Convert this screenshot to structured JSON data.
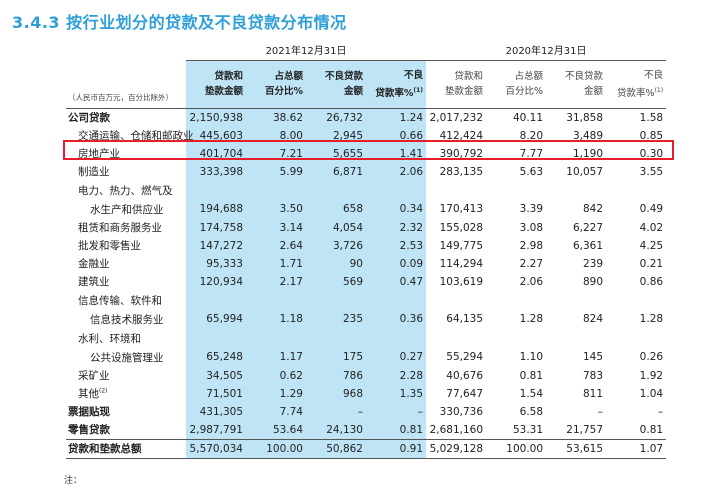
{
  "title": "3.4.3 按行业划分的贷款及不良贷款分布情况",
  "year_2021": "2021年12月31日",
  "year_2020": "2020年12月31日",
  "unit_note": "（人民币百万元，百分比除外）",
  "headers": {
    "loan_amount": [
      "贷款和",
      "垫款金额"
    ],
    "pct_total": [
      "占总额",
      "百分比%"
    ],
    "npl_amount": [
      "不良贷款",
      "金额"
    ],
    "npl_ratio": [
      "不良",
      "贷款率%"
    ],
    "npl_ratio_note": "(1)"
  },
  "rows": [
    {
      "label": "公司贷款",
      "style": "bold",
      "v": [
        "2,150,938",
        "38.62",
        "26,732",
        "1.24",
        "2,017,232",
        "40.11",
        "31,858",
        "1.58"
      ]
    },
    {
      "label": "交通运输、仓储和邮政业",
      "style": "sub",
      "v": [
        "445,603",
        "8.00",
        "2,945",
        "0.66",
        "412,424",
        "8.20",
        "3,489",
        "0.85"
      ]
    },
    {
      "label": "房地产业",
      "style": "sub",
      "v": [
        "401,704",
        "7.21",
        "5,655",
        "1.41",
        "390,792",
        "7.77",
        "1,190",
        "0.30"
      ]
    },
    {
      "label": "制造业",
      "style": "sub",
      "v": [
        "333,398",
        "5.99",
        "6,871",
        "2.06",
        "283,135",
        "5.63",
        "10,057",
        "3.55"
      ]
    },
    {
      "label": "电力、热力、燃气及",
      "label2": "水生产和供应业",
      "style": "sub",
      "v": [
        "194,688",
        "3.50",
        "658",
        "0.34",
        "170,413",
        "3.39",
        "842",
        "0.49"
      ]
    },
    {
      "label": "租赁和商务服务业",
      "style": "sub",
      "v": [
        "174,758",
        "3.14",
        "4,054",
        "2.32",
        "155,028",
        "3.08",
        "6,227",
        "4.02"
      ]
    },
    {
      "label": "批发和零售业",
      "style": "sub",
      "v": [
        "147,272",
        "2.64",
        "3,726",
        "2.53",
        "149,775",
        "2.98",
        "6,361",
        "4.25"
      ]
    },
    {
      "label": "金融业",
      "style": "sub",
      "v": [
        "95,333",
        "1.71",
        "90",
        "0.09",
        "114,294",
        "2.27",
        "239",
        "0.21"
      ]
    },
    {
      "label": "建筑业",
      "style": "sub",
      "v": [
        "120,934",
        "2.17",
        "569",
        "0.47",
        "103,619",
        "2.06",
        "890",
        "0.86"
      ]
    },
    {
      "label": "信息传输、软件和",
      "label2": "信息技术服务业",
      "style": "sub",
      "v": [
        "65,994",
        "1.18",
        "235",
        "0.36",
        "64,135",
        "1.28",
        "824",
        "1.28"
      ]
    },
    {
      "label": "水利、环境和",
      "label2": "公共设施管理业",
      "style": "sub",
      "v": [
        "65,248",
        "1.17",
        "175",
        "0.27",
        "55,294",
        "1.10",
        "145",
        "0.26"
      ]
    },
    {
      "label": "采矿业",
      "style": "sub",
      "v": [
        "34,505",
        "0.62",
        "786",
        "2.28",
        "40,676",
        "0.81",
        "783",
        "1.92"
      ]
    },
    {
      "label": "其他",
      "note": "(2)",
      "style": "sub",
      "v": [
        "71,501",
        "1.29",
        "968",
        "1.35",
        "77,647",
        "1.54",
        "811",
        "1.04"
      ]
    },
    {
      "label": "票据贴现",
      "style": "bold",
      "v": [
        "431,305",
        "7.74",
        "–",
        "–",
        "330,736",
        "6.58",
        "–",
        "–"
      ]
    },
    {
      "label": "零售贷款",
      "style": "bold",
      "v": [
        "2,987,791",
        "53.64",
        "24,130",
        "0.81",
        "2,681,160",
        "53.31",
        "21,757",
        "0.81"
      ]
    },
    {
      "label": "贷款和垫款总额",
      "style": "bold",
      "v": [
        "5,570,034",
        "100.00",
        "50,862",
        "0.91",
        "5,029,128",
        "100.00",
        "53,615",
        "1.07"
      ]
    }
  ],
  "footnote": "注：",
  "colors": {
    "title": "#2f9fd8",
    "highlight": "#bfe4f6",
    "red_box": "#e5202a"
  }
}
